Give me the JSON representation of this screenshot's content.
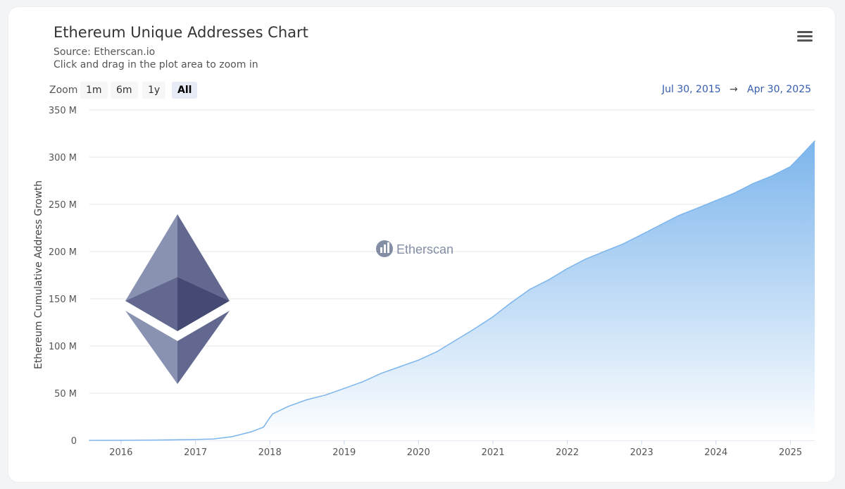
{
  "header": {
    "title": "Ethereum Unique Addresses Chart",
    "source": "Source: Etherscan.io",
    "hint": "Click and drag in the plot area to zoom in"
  },
  "zoom": {
    "label": "Zoom",
    "buttons": [
      "1m",
      "6m",
      "1y",
      "All"
    ],
    "active": "All"
  },
  "range": {
    "from": "Jul 30, 2015",
    "arrow": "→",
    "to": "Apr 30, 2025"
  },
  "icons": {
    "menu": "hamburger-menu-icon",
    "logo": "ethereum-logo-icon",
    "watermark": "etherscan-logo-icon"
  },
  "watermark_text": "Etherscan",
  "chart_data": {
    "type": "area",
    "title": "Ethereum Unique Addresses Chart",
    "ylabel": "Ethereum Cumulative Address Growth",
    "xlabel": "",
    "y_unit": "M",
    "ylim": [
      0,
      350
    ],
    "y_ticks": [
      0,
      50,
      100,
      150,
      200,
      250,
      300,
      350
    ],
    "y_tick_labels": [
      "0",
      "50 M",
      "100 M",
      "150 M",
      "200 M",
      "250 M",
      "300 M",
      "350 M"
    ],
    "xlim": [
      "2015-07-30",
      "2025-04-30"
    ],
    "x_tick_labels": [
      "2016",
      "2017",
      "2018",
      "2019",
      "2020",
      "2021",
      "2022",
      "2023",
      "2024",
      "2025"
    ],
    "grid": true,
    "legend": false,
    "colors": {
      "line": "#7cb5ec",
      "fill_top": "#7cb5ec",
      "fill_bottom": "#ffffff"
    },
    "series": [
      {
        "x": [
          "2015-07-30",
          "2016-01-01",
          "2016-07-01",
          "2017-01-01",
          "2017-04-01",
          "2017-07-01",
          "2017-10-01",
          "2017-12-01",
          "2018-01-01",
          "2018-01-15",
          "2018-04-01",
          "2018-07-01",
          "2018-10-01",
          "2019-01-01",
          "2019-04-01",
          "2019-07-01",
          "2019-10-01",
          "2020-01-01",
          "2020-04-01",
          "2020-07-01",
          "2020-10-01",
          "2021-01-01",
          "2021-04-01",
          "2021-07-01",
          "2021-10-01",
          "2022-01-01",
          "2022-04-01",
          "2022-07-01",
          "2022-10-01",
          "2023-01-01",
          "2023-04-01",
          "2023-07-01",
          "2023-10-01",
          "2024-01-01",
          "2024-04-01",
          "2024-07-01",
          "2024-10-01",
          "2025-01-01",
          "2025-02-15",
          "2025-04-30"
        ],
        "values": [
          0,
          0.1,
          0.4,
          1,
          1.5,
          4,
          9,
          14,
          24,
          28,
          36,
          43,
          48,
          55,
          62,
          71,
          78,
          85,
          94,
          106,
          118,
          131,
          146,
          160,
          170,
          182,
          192,
          200,
          208,
          218,
          228,
          238,
          246,
          254,
          262,
          272,
          280,
          290,
          300,
          317
        ]
      }
    ]
  }
}
